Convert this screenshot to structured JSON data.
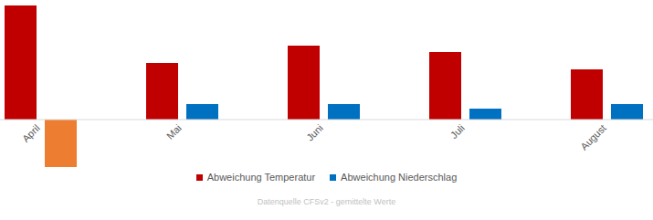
{
  "chart_data": {
    "type": "bar",
    "categories": [
      "April",
      "Mai",
      "Juni",
      "Juli",
      "August"
    ],
    "series": [
      {
        "name": "Abweichung Temperatur",
        "color": "#c00000",
        "values": [
          2.5,
          1.24,
          1.62,
          1.48,
          1.1
        ]
      },
      {
        "name": "Abweichung Niederschlag",
        "color": "#0070c0",
        "colors": [
          "#ed7d31",
          "#0070c0",
          "#0070c0",
          "#0070c0",
          "#0070c0"
        ],
        "values": [
          -1.04,
          0.34,
          0.34,
          0.24,
          0.34
        ]
      }
    ],
    "ylim": [
      -1.1,
      2.5
    ],
    "tick_labels": "x",
    "legend": "bottom",
    "annotation": "Datenquelle CFSv2 - gemittelte Werte"
  }
}
